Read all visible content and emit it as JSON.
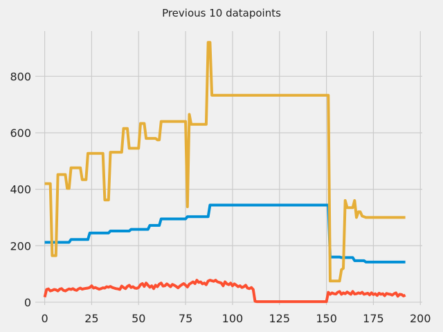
{
  "chart_data": {
    "type": "line",
    "title": "Previous 10 datapoints",
    "xlabel": "",
    "ylabel": "",
    "xlim": [
      -5,
      201
    ],
    "ylim": [
      -10,
      960
    ],
    "grid": true,
    "xticks": [
      0,
      25,
      50,
      75,
      100,
      125,
      150,
      175,
      200
    ],
    "yticks": [
      0,
      200,
      400,
      600,
      800
    ],
    "series": [
      {
        "color": "#008fd5",
        "x": [
          0,
          13,
          14,
          23,
          24,
          34,
          35,
          45,
          46,
          55,
          56,
          61,
          62,
          75,
          76,
          87,
          88,
          150,
          151,
          152,
          157,
          158,
          164,
          165,
          170,
          171,
          192
        ],
        "y": [
          212,
          212,
          222,
          222,
          245,
          245,
          252,
          252,
          258,
          258,
          272,
          272,
          295,
          295,
          303,
          303,
          344,
          344,
          344,
          160,
          160,
          158,
          158,
          147,
          147,
          142,
          142
        ]
      },
      {
        "color": "#fc4f30",
        "x": [
          0,
          1,
          2,
          3,
          4,
          5,
          6,
          7,
          8,
          9,
          10,
          11,
          12,
          13,
          14,
          15,
          16,
          17,
          18,
          19,
          20,
          21,
          22,
          23,
          24,
          25,
          26,
          27,
          28,
          29,
          30,
          31,
          32,
          33,
          34,
          35,
          36,
          37,
          38,
          39,
          40,
          41,
          42,
          43,
          44,
          45,
          46,
          47,
          48,
          49,
          50,
          51,
          52,
          53,
          54,
          55,
          56,
          57,
          58,
          59,
          60,
          61,
          62,
          63,
          64,
          65,
          66,
          67,
          68,
          69,
          70,
          71,
          72,
          73,
          74,
          75,
          76,
          77,
          78,
          79,
          80,
          81,
          82,
          83,
          84,
          85,
          86,
          87,
          88,
          89,
          90,
          91,
          92,
          93,
          94,
          95,
          96,
          97,
          98,
          99,
          100,
          101,
          102,
          103,
          104,
          105,
          106,
          107,
          108,
          109,
          110,
          111,
          112,
          113,
          150,
          151,
          152,
          153,
          154,
          155,
          156,
          157,
          158,
          159,
          160,
          161,
          162,
          163,
          164,
          165,
          166,
          167,
          168,
          169,
          170,
          171,
          172,
          173,
          174,
          175,
          176,
          177,
          178,
          179,
          180,
          181,
          182,
          183,
          184,
          185,
          186,
          187,
          188,
          189,
          190,
          191,
          192
        ],
        "y": [
          18,
          45,
          47,
          40,
          42,
          45,
          44,
          40,
          46,
          48,
          42,
          40,
          44,
          47,
          45,
          48,
          44,
          42,
          47,
          50,
          46,
          48,
          49,
          50,
          52,
          58,
          50,
          52,
          49,
          46,
          48,
          51,
          50,
          55,
          53,
          56,
          52,
          50,
          48,
          47,
          45,
          57,
          52,
          48,
          56,
          60,
          52,
          55,
          50,
          49,
          52,
          62,
          66,
          56,
          68,
          60,
          53,
          58,
          48,
          60,
          55,
          64,
          68,
          57,
          58,
          65,
          60,
          55,
          63,
          60,
          56,
          51,
          57,
          62,
          66,
          60,
          54,
          64,
          68,
          72,
          66,
          78,
          70,
          72,
          65,
          68,
          62,
          75,
          78,
          76,
          74,
          78,
          72,
          70,
          68,
          58,
          72,
          65,
          62,
          68,
          58,
          65,
          60,
          55,
          58,
          52,
          55,
          60,
          50,
          48,
          52,
          45,
          3,
          2,
          2,
          35,
          28,
          33,
          30,
          29,
          35,
          38,
          28,
          33,
          30,
          36,
          32,
          28,
          38,
          29,
          30,
          33,
          31,
          35,
          28,
          30,
          32,
          26,
          33,
          27,
          30,
          24,
          32,
          28,
          30,
          23,
          31,
          29,
          28,
          25,
          30,
          33,
          21,
          28,
          27,
          22,
          25
        ],
        "y_note": ""
      },
      {
        "color": "#e5ae38",
        "x": [
          0,
          3,
          4,
          6,
          7,
          11,
          12,
          13,
          14,
          18,
          19,
          20,
          22,
          23,
          31,
          32,
          34,
          35,
          41,
          42,
          44,
          45,
          50,
          51,
          53,
          54,
          59,
          60,
          61,
          62,
          74,
          75,
          76,
          77,
          78,
          79,
          86,
          87,
          88,
          89,
          151,
          152,
          153,
          157,
          158,
          159,
          160,
          161,
          164,
          165,
          166,
          167,
          168,
          169,
          171,
          173,
          192
        ],
        "y": [
          420,
          420,
          165,
          165,
          452,
          452,
          403,
          403,
          476,
          476,
          476,
          434,
          434,
          527,
          527,
          362,
          362,
          531,
          531,
          615,
          615,
          545,
          545,
          633,
          633,
          580,
          580,
          575,
          575,
          640,
          640,
          640,
          338,
          665,
          630,
          630,
          630,
          920,
          920,
          733,
          733,
          75,
          75,
          75,
          115,
          120,
          360,
          335,
          335,
          360,
          300,
          320,
          320,
          305,
          300,
          300,
          300
        ]
      }
    ]
  }
}
